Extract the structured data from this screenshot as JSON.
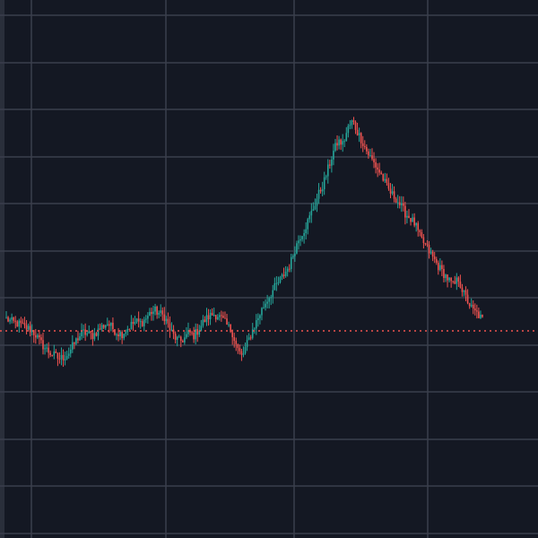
{
  "chart_data": {
    "type": "candlestick",
    "grid": true,
    "last_price_line": true,
    "colors": {
      "background": "#141823",
      "grid": "#3a3f4c",
      "up": "#26a69a",
      "down": "#ef5350",
      "price_line": "#ef5350"
    },
    "reference_price": 0.39,
    "ylim": [
      0,
      1
    ],
    "x_count": 100,
    "close_series": [
      0.47,
      0.45,
      0.44,
      0.43,
      0.41,
      0.4,
      0.37,
      0.32,
      0.28,
      0.25,
      0.23,
      0.21,
      0.22,
      0.25,
      0.3,
      0.35,
      0.38,
      0.37,
      0.36,
      0.39,
      0.42,
      0.44,
      0.41,
      0.38,
      0.37,
      0.4,
      0.43,
      0.45,
      0.44,
      0.47,
      0.51,
      0.52,
      0.5,
      0.48,
      0.4,
      0.35,
      0.32,
      0.34,
      0.38,
      0.36,
      0.4,
      0.45,
      0.48,
      0.5,
      0.49,
      0.46,
      0.42,
      0.38,
      0.28,
      0.22,
      0.3,
      0.38,
      0.45,
      0.52,
      0.58,
      0.63,
      0.68,
      0.72,
      0.77,
      0.82,
      0.92,
      1.0,
      1.05,
      1.12,
      1.2,
      1.28,
      1.35,
      1.45,
      1.55,
      1.62,
      1.6,
      1.7,
      1.75,
      1.68,
      1.62,
      1.55,
      1.5,
      1.45,
      1.4,
      1.33,
      1.28,
      1.25,
      1.2,
      1.15,
      1.12,
      1.08,
      1.0,
      0.95,
      0.9,
      0.85,
      0.8,
      0.76,
      0.72,
      0.68,
      0.73,
      0.64,
      0.58,
      0.52,
      0.5,
      0.46
    ]
  }
}
